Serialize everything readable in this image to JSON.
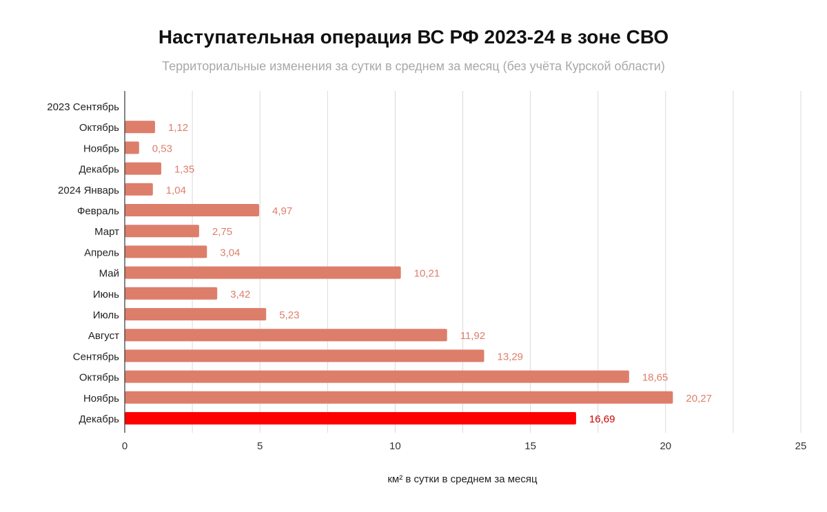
{
  "chart_data": {
    "type": "bar",
    "orientation": "horizontal",
    "title": "Наступательная операция ВС РФ 2023-24 в зоне СВО",
    "subtitle": "Территориальные изменения за сутки в среднем за месяц (без учёта Курской области)",
    "xlabel": "км² в сутки в среднем за месяц",
    "ylabel": "",
    "xlim": [
      0,
      25
    ],
    "xticks": [
      0,
      5,
      10,
      15,
      20,
      25
    ],
    "grid": true,
    "legend": "none",
    "categories": [
      "2023 Сентябрь",
      "Октябрь",
      "Ноябрь",
      "Декабрь",
      "2024 Январь",
      "Февраль",
      "Март",
      "Апрель",
      "Май",
      "Июнь",
      "Июль",
      "Август",
      "Сентябрь",
      "Октябрь",
      "Ноябрь",
      "Декабрь"
    ],
    "values": [
      null,
      1.12,
      0.53,
      1.35,
      1.04,
      4.97,
      2.75,
      3.04,
      10.21,
      3.42,
      5.23,
      11.92,
      13.29,
      18.65,
      20.27,
      16.69
    ],
    "value_labels": [
      "",
      "1,12",
      "0,53",
      "1,35",
      "1,04",
      "4,97",
      "2,75",
      "3,04",
      "10,21",
      "3,42",
      "5,23",
      "11,92",
      "13,29",
      "18,65",
      "20,27",
      "16,69"
    ],
    "colors": {
      "bar": "#dd7e6b",
      "highlight_bar": "#ff0000",
      "label": "#dd7e6b",
      "highlight_label": "#cc0000",
      "grid": "#d9d9d9",
      "axis": "#333333"
    },
    "highlight_index": 15
  }
}
